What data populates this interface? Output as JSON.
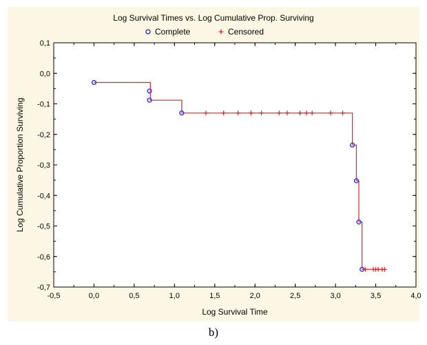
{
  "caption": "b)",
  "chart_data": {
    "type": "scatter",
    "title": "Log Survival Times vs. Log Cumulative Prop. Surviving",
    "xlabel": "Log Survival Time",
    "ylabel": "Log Cumulative Proportion Surviving",
    "xlim": [
      -0.5,
      4.0
    ],
    "ylim": [
      -0.7,
      0.1
    ],
    "x_ticks": [
      -0.5,
      0.0,
      0.5,
      1.0,
      1.5,
      2.0,
      2.5,
      3.0,
      3.5,
      4.0
    ],
    "x_tick_labels": [
      "-0,5",
      "0,0",
      "0,5",
      "1,0",
      "1,5",
      "2,0",
      "2,5",
      "3,0",
      "3,5",
      "4,0"
    ],
    "y_ticks": [
      0.1,
      0.0,
      -0.1,
      -0.2,
      -0.3,
      -0.4,
      -0.5,
      -0.6,
      -0.7
    ],
    "y_tick_labels": [
      "0,1",
      "0,0",
      "-0,1",
      "-0,2",
      "-0,3",
      "-0,4",
      "-0,5",
      "-0,6",
      "-0,7"
    ],
    "grid": false,
    "legend_position": "top",
    "legend": [
      {
        "label": "Complete",
        "marker": "circle",
        "color": "#2424c8"
      },
      {
        "label": "Censored",
        "marker": "plus",
        "color": "#e0201c"
      }
    ],
    "series": [
      {
        "name": "Complete",
        "marker": "circle",
        "color": "#2424c8",
        "x": [
          0.0,
          0.69,
          0.69,
          1.09,
          3.21,
          3.26,
          3.29,
          3.33
        ],
        "y": [
          -0.03,
          -0.058,
          -0.088,
          -0.13,
          -0.235,
          -0.352,
          -0.487,
          -0.642
        ]
      },
      {
        "name": "Censored",
        "marker": "plus",
        "color": "#e0201c",
        "x": [
          1.39,
          1.61,
          1.79,
          1.95,
          2.08,
          2.3,
          2.4,
          2.56,
          2.64,
          2.71,
          2.94,
          3.09,
          3.37,
          3.47,
          3.5,
          3.53,
          3.58,
          3.61
        ],
        "y": [
          -0.13,
          -0.13,
          -0.13,
          -0.13,
          -0.13,
          -0.13,
          -0.13,
          -0.13,
          -0.13,
          -0.13,
          -0.13,
          -0.13,
          -0.642,
          -0.642,
          -0.642,
          -0.642,
          -0.642,
          -0.642
        ]
      },
      {
        "name": "",
        "type": "step",
        "color": "#e0201c",
        "x": [
          0.0,
          0.7,
          0.7,
          1.09,
          1.09,
          3.21,
          3.21,
          3.26,
          3.26,
          3.29,
          3.29,
          3.33,
          3.33,
          3.61
        ],
        "y": [
          -0.03,
          -0.03,
          -0.088,
          -0.088,
          -0.13,
          -0.13,
          -0.235,
          -0.235,
          -0.352,
          -0.352,
          -0.487,
          -0.487,
          -0.642,
          -0.642
        ]
      }
    ]
  }
}
